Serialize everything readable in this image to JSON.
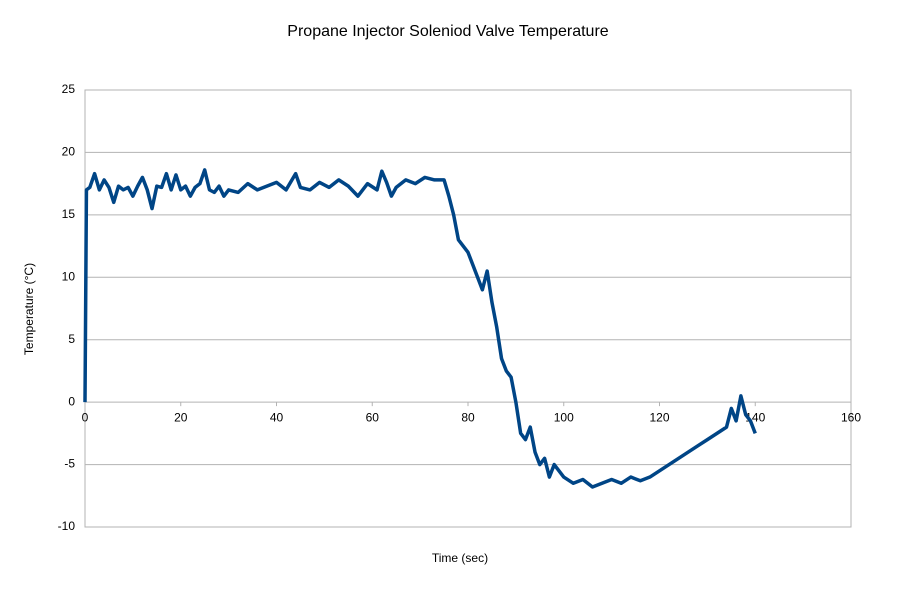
{
  "chart_data": {
    "type": "line",
    "title": "Propane Injector Soleniod Valve Temperature",
    "x_label": "Time (sec)",
    "y_label": "Temperature (°C)",
    "x": [
      0,
      0.3,
      1,
      2,
      3,
      4,
      5,
      6,
      7,
      8,
      9,
      10,
      11,
      12,
      13,
      14,
      15,
      16,
      17,
      18,
      19,
      20,
      21,
      22,
      23,
      24,
      25,
      26,
      27,
      28,
      29,
      30,
      32,
      34,
      36,
      38,
      40,
      42,
      44,
      45,
      47,
      49,
      51,
      53,
      55,
      57,
      59,
      61,
      62,
      63,
      64,
      65,
      67,
      69,
      71,
      73,
      75,
      76,
      77,
      78,
      79,
      80,
      81,
      82,
      83,
      84,
      85,
      86,
      87,
      88,
      89,
      90,
      91,
      92,
      93,
      94,
      95,
      96,
      97,
      98,
      100,
      102,
      104,
      106,
      108,
      110,
      112,
      114,
      116,
      118,
      120,
      122,
      124,
      126,
      128,
      130,
      132,
      134,
      135,
      136,
      137,
      138,
      139,
      140
    ],
    "series": [
      {
        "name": "Temperature",
        "color": "#004586",
        "values": [
          0,
          17,
          17.2,
          18.3,
          17,
          17.8,
          17.2,
          16,
          17.3,
          17,
          17.2,
          16.5,
          17.3,
          18,
          17,
          15.5,
          17.3,
          17.2,
          18.3,
          17,
          18.2,
          17,
          17.3,
          16.5,
          17.2,
          17.5,
          18.6,
          17,
          16.8,
          17.3,
          16.5,
          17,
          16.8,
          17.5,
          17,
          17.3,
          17.6,
          17,
          18.3,
          17.2,
          17,
          17.6,
          17.2,
          17.8,
          17.3,
          16.5,
          17.5,
          17,
          18.5,
          17.6,
          16.5,
          17.2,
          17.8,
          17.5,
          18,
          17.8,
          17.8,
          16.5,
          15,
          13,
          12.5,
          12,
          11,
          10,
          9,
          10.5,
          8,
          6,
          3.5,
          2.5,
          2,
          0,
          -2.5,
          -3,
          -2,
          -4,
          -5,
          -4.5,
          -6,
          -5,
          -6,
          -6.5,
          -6.2,
          -6.8,
          -6.5,
          -6.2,
          -6.5,
          -6,
          -6.3,
          -6,
          -5.5,
          -5,
          -4.5,
          -4,
          -3.5,
          -3,
          -2.5,
          -2,
          -0.5,
          -1.5,
          0.5,
          -1,
          -1.5,
          -2.5
        ]
      }
    ],
    "xlim": [
      0,
      160
    ],
    "xticks": [
      0,
      20,
      40,
      60,
      80,
      100,
      120,
      140,
      160
    ],
    "ylim": [
      -10,
      25
    ],
    "yticks": [
      -10,
      -5,
      0,
      5,
      10,
      15,
      20,
      25
    ],
    "grid": true
  }
}
